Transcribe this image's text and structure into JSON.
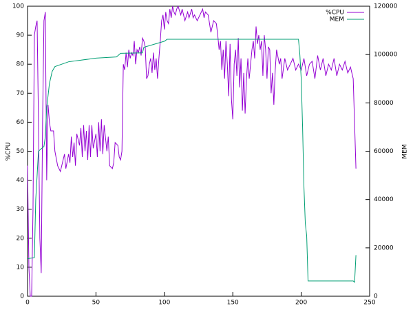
{
  "chart_data": {
    "type": "line",
    "ylabel": "%CPU",
    "y2label": "MEM",
    "xlim": [
      0,
      250
    ],
    "xticks": [
      0,
      50,
      100,
      150,
      200,
      250
    ],
    "ylim": [
      0,
      100
    ],
    "yticks": [
      0,
      10,
      20,
      30,
      40,
      50,
      60,
      70,
      80,
      90,
      100
    ],
    "y2lim": [
      0,
      120000
    ],
    "y2ticks": [
      0,
      20000,
      40000,
      60000,
      80000,
      100000,
      120000
    ],
    "legend": "top-right",
    "series": [
      {
        "name": "%CPU",
        "color": "#9400d3",
        "x": [
          0,
          1,
          2,
          3,
          4,
          5,
          6,
          7,
          8,
          9,
          10,
          11,
          12,
          13,
          14,
          15,
          16,
          17,
          18,
          19,
          20,
          22,
          24,
          26,
          27,
          28,
          30,
          31,
          32,
          33,
          34,
          35,
          36,
          38,
          39,
          40,
          41,
          42,
          43,
          44,
          45,
          46,
          47,
          48,
          50,
          51,
          52,
          53,
          54,
          55,
          56,
          58,
          59,
          60,
          62,
          63,
          64,
          66,
          67,
          68,
          69,
          70,
          71,
          72,
          73,
          74,
          75,
          76,
          77,
          78,
          79,
          80,
          81,
          82,
          83,
          84,
          85,
          86,
          87,
          88,
          89,
          90,
          91,
          92,
          93,
          94,
          95,
          96,
          97,
          98,
          99,
          100,
          101,
          102,
          103,
          104,
          105,
          106,
          107,
          108,
          109,
          110,
          112,
          113,
          115,
          117,
          118,
          120,
          121,
          122,
          124,
          126,
          128,
          129,
          130,
          132,
          134,
          136,
          138,
          139,
          140,
          141,
          142,
          143,
          144,
          145,
          146,
          147,
          148,
          149,
          150,
          151,
          152,
          153,
          154,
          155,
          156,
          157,
          158,
          159,
          160,
          161,
          162,
          164,
          165,
          166,
          167,
          168,
          169,
          170,
          171,
          172,
          173,
          174,
          175,
          176,
          177,
          178,
          179,
          180,
          181,
          182,
          184,
          185,
          186,
          188,
          190,
          192,
          194,
          196,
          198,
          200,
          202,
          204,
          206,
          208,
          210,
          212,
          214,
          216,
          218,
          220,
          222,
          224,
          226,
          228,
          230,
          232,
          234,
          236,
          238,
          240
        ],
        "values": [
          45,
          10,
          0,
          0,
          30,
          90,
          93,
          95,
          60,
          20,
          8,
          60,
          95,
          98,
          40,
          66,
          60,
          57,
          57,
          57,
          50,
          45,
          43,
          47,
          49,
          44,
          49,
          46,
          55,
          48,
          53,
          45,
          56,
          52,
          58,
          48,
          59,
          50,
          57,
          47,
          59,
          48,
          59,
          51,
          56,
          48,
          60,
          50,
          61,
          49,
          59,
          50,
          55,
          45,
          44,
          46,
          53,
          52,
          48,
          47,
          50,
          80,
          78,
          84,
          79,
          85,
          82,
          84,
          83,
          88,
          80,
          85,
          84,
          86,
          83,
          89,
          88,
          86,
          75,
          76,
          80,
          82,
          77,
          84,
          78,
          82,
          75,
          82,
          88,
          95,
          97,
          92,
          98,
          95,
          94,
          99,
          96,
          100,
          98,
          97,
          99,
          100,
          97,
          99,
          95,
          98,
          96,
          99,
          96,
          97,
          95,
          97,
          99,
          96,
          98,
          97,
          91,
          95,
          94,
          90,
          85,
          88,
          78,
          85,
          75,
          88,
          80,
          69,
          87,
          68,
          61,
          80,
          85,
          76,
          89,
          72,
          82,
          64,
          77,
          63,
          75,
          82,
          75,
          85,
          88,
          82,
          93,
          87,
          90,
          85,
          88,
          76,
          90,
          85,
          75,
          86,
          85,
          70,
          77,
          66,
          78,
          85,
          80,
          82,
          75,
          82,
          78,
          80,
          82,
          78,
          80,
          78,
          82,
          76,
          80,
          81,
          75,
          83,
          78,
          82,
          76,
          80,
          78,
          82,
          76,
          80,
          78,
          81,
          77,
          79,
          75,
          44
        ]
      },
      {
        "name": "MEM",
        "color": "#009e73",
        "axis": "y2",
        "x": [
          0,
          5,
          6,
          7,
          8,
          12,
          13,
          14,
          16,
          18,
          20,
          30,
          50,
          65,
          68,
          84,
          85,
          100,
          102,
          198,
          199,
          200,
          201,
          202,
          203,
          204,
          205,
          238,
          239,
          240
        ],
        "values": [
          15500,
          16000,
          40000,
          50000,
          60000,
          62000,
          66000,
          78000,
          88000,
          93000,
          95000,
          97000,
          98500,
          99000,
          100500,
          100700,
          103000,
          105500,
          106300,
          106300,
          100000,
          90000,
          70000,
          45000,
          30000,
          25000,
          6300,
          6300,
          5800,
          17000
        ]
      }
    ]
  }
}
